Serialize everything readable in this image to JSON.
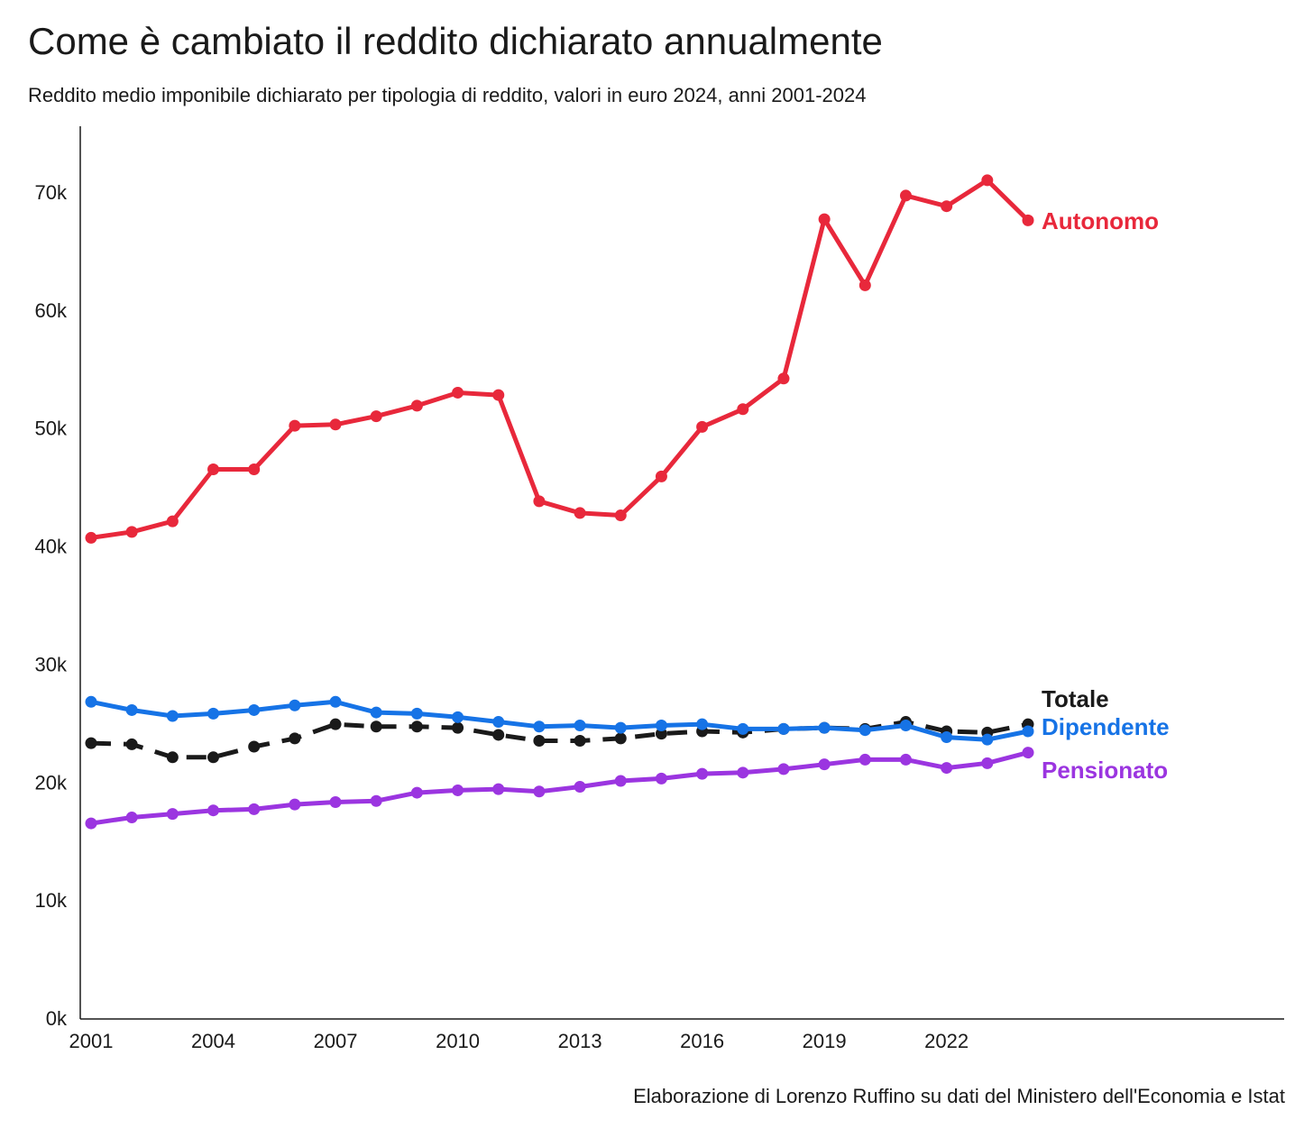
{
  "title": "Come è cambiato il reddito dichiarato annualmente",
  "subtitle": "Reddito medio imponibile dichiarato per tipologia di reddito, valori in euro 2024, anni 2001-2024",
  "source": "Elaborazione di Lorenzo Ruffino su dati del Ministero dell'Economia e Istat",
  "chart_data": {
    "type": "line",
    "title": "Come è cambiato il reddito dichiarato annualmente",
    "xlabel": "",
    "ylabel": "",
    "x": [
      2001,
      2002,
      2003,
      2004,
      2005,
      2006,
      2007,
      2008,
      2009,
      2010,
      2011,
      2012,
      2013,
      2014,
      2015,
      2016,
      2017,
      2018,
      2019,
      2020,
      2021,
      2022,
      2023,
      2024
    ],
    "xlim": [
      2001,
      2030
    ],
    "ylim": [
      0,
      76000
    ],
    "x_ticks": [
      2001,
      2004,
      2007,
      2010,
      2013,
      2016,
      2019,
      2022
    ],
    "x_tick_labels": [
      "2001",
      "2004",
      "2007",
      "2010",
      "2013",
      "2016",
      "2019",
      "2022"
    ],
    "y_ticks": [
      0,
      10000,
      20000,
      30000,
      40000,
      50000,
      60000,
      70000
    ],
    "y_tick_labels": [
      "0k",
      "10k",
      "20k",
      "30k",
      "40k",
      "50k",
      "60k",
      "70k"
    ],
    "grid": false,
    "series": [
      {
        "name": "Autonomo",
        "label": "Autonomo",
        "color": "#e8283b",
        "dash": false,
        "values": [
          40700,
          41200,
          42100,
          46500,
          46500,
          50200,
          50300,
          51000,
          51900,
          53000,
          52800,
          43800,
          42800,
          42600,
          45900,
          50100,
          51600,
          54200,
          67700,
          62100,
          69700,
          68800,
          71000,
          67600
        ]
      },
      {
        "name": "Totale",
        "label": "Totale",
        "color": "#1a1a1a",
        "dash": true,
        "values": [
          23300,
          23200,
          22100,
          22100,
          23000,
          23700,
          24900,
          24700,
          24700,
          24600,
          24000,
          23500,
          23500,
          23700,
          24100,
          24300,
          24200,
          24500,
          24600,
          24500,
          25100,
          24300,
          24200,
          24900
        ]
      },
      {
        "name": "Dipendente",
        "label": "Dipendente",
        "color": "#1673e6",
        "dash": false,
        "values": [
          26800,
          26100,
          25600,
          25800,
          26100,
          26500,
          26800,
          25900,
          25800,
          25500,
          25100,
          24700,
          24800,
          24600,
          24800,
          24900,
          24500,
          24500,
          24600,
          24400,
          24800,
          23800,
          23600,
          24300
        ]
      },
      {
        "name": "Pensionato",
        "label": "Pensionato",
        "color": "#9b35e0",
        "dash": false,
        "values": [
          16500,
          17000,
          17300,
          17600,
          17700,
          18100,
          18300,
          18400,
          19100,
          19300,
          19400,
          19200,
          19600,
          20100,
          20300,
          20700,
          20800,
          21100,
          21500,
          21900,
          21900,
          21200,
          21600,
          22500
        ]
      }
    ]
  }
}
